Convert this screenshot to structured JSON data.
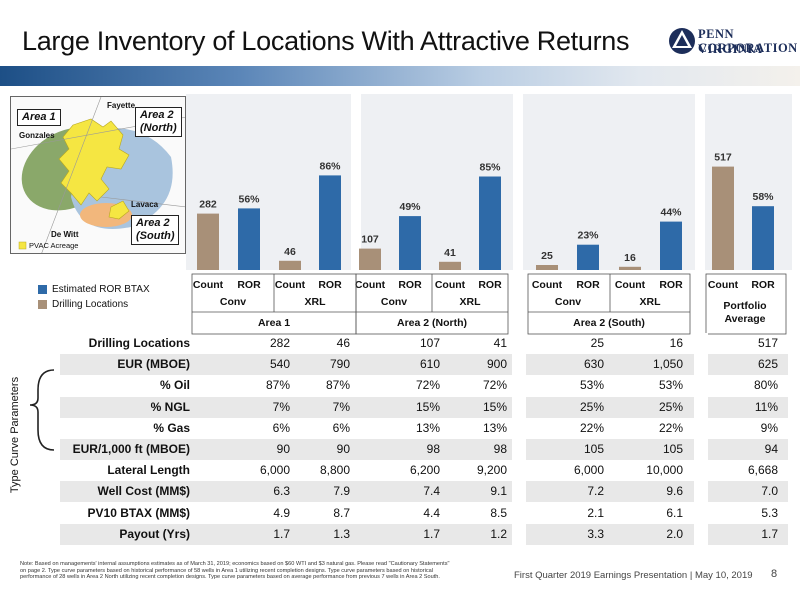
{
  "title": "Large Inventory of Locations With Attractive Returns",
  "logo": {
    "line1": "PENN VIRGINIA",
    "line2": "CORPORATION"
  },
  "map": {
    "labels": {
      "fayette": "Fayette",
      "gonzales": "Gonzales",
      "lavaca": "Lavaca",
      "dewitt": "De Witt",
      "acreage": "PVAC Acreage"
    },
    "callouts": {
      "area1": "Area 1",
      "area2n_l1": "Area 2",
      "area2n_l2": "(North)",
      "area2s_l1": "Area 2",
      "area2s_l2": "(South)"
    },
    "colors": {
      "area1": "#8aa86a",
      "area2n": "#a9c4de",
      "area2s": "#f2b77c",
      "acreage": "#f5e642"
    }
  },
  "legend": {
    "ror": "Estimated ROR BTAX",
    "count": "Drilling Locations"
  },
  "colors": {
    "ror": "#2e6aa8",
    "count": "#a89078"
  },
  "chart_data": {
    "type": "bar",
    "groups": [
      {
        "area": "Area 1",
        "sub": "Conv",
        "count": 282,
        "ror": 56
      },
      {
        "area": "Area 1",
        "sub": "XRL",
        "count": 46,
        "ror": 86
      },
      {
        "area": "Area 2 (North)",
        "sub": "Conv",
        "count": 107,
        "ror": 49
      },
      {
        "area": "Area 2 (North)",
        "sub": "XRL",
        "count": 41,
        "ror": 85
      },
      {
        "area": "Area 2 (South)",
        "sub": "Conv",
        "count": 25,
        "ror": 23
      },
      {
        "area": "Area 2 (South)",
        "sub": "XRL",
        "count": 16,
        "ror": 44
      },
      {
        "area": "Portfolio Average",
        "sub": "",
        "count": 517,
        "ror": 58
      }
    ],
    "count_label": "Count",
    "ror_label": "ROR"
  },
  "headers": {
    "conv": "Conv",
    "xrl": "XRL",
    "area1": "Area 1",
    "area2n": "Area 2 (North)",
    "area2s": "Area 2 (South)",
    "portfolio_l1": "Portfolio",
    "portfolio_l2": "Average"
  },
  "table": {
    "side_label": "Type Curve Parameters",
    "rows": [
      {
        "label": "Drilling Locations",
        "values": [
          "282",
          "46",
          "107",
          "41",
          "25",
          "16",
          "517"
        ]
      },
      {
        "label": "EUR (MBOE)",
        "values": [
          "540",
          "790",
          "610",
          "900",
          "630",
          "1,050",
          "625"
        ]
      },
      {
        "label": "% Oil",
        "values": [
          "87%",
          "87%",
          "72%",
          "72%",
          "53%",
          "53%",
          "80%"
        ]
      },
      {
        "label": "% NGL",
        "values": [
          "7%",
          "7%",
          "15%",
          "15%",
          "25%",
          "25%",
          "11%"
        ]
      },
      {
        "label": "% Gas",
        "values": [
          "6%",
          "6%",
          "13%",
          "13%",
          "22%",
          "22%",
          "9%"
        ]
      },
      {
        "label": "EUR/1,000 ft (MBOE)",
        "values": [
          "90",
          "90",
          "98",
          "98",
          "105",
          "105",
          "94"
        ]
      },
      {
        "label": "Lateral Length",
        "values": [
          "6,000",
          "8,800",
          "6,200",
          "9,200",
          "6,000",
          "10,000",
          "6,668"
        ]
      },
      {
        "label": "Well Cost (MM$)",
        "values": [
          "6.3",
          "7.9",
          "7.4",
          "9.1",
          "7.2",
          "9.6",
          "7.0"
        ]
      },
      {
        "label": "PV10 BTAX (MM$)",
        "values": [
          "4.9",
          "8.7",
          "4.4",
          "8.5",
          "2.1",
          "6.1",
          "5.3"
        ]
      },
      {
        "label": "Payout (Yrs)",
        "values": [
          "1.7",
          "1.3",
          "1.7",
          "1.2",
          "3.3",
          "2.0",
          "1.7"
        ]
      }
    ]
  },
  "note": "Note: Based on managements' internal assumptions estimates as of March 31, 2019; economics based on $60 WTI and $3 natural gas. Please read \"Cautionary Statements\" on page 2. Type curve parameters based on historical performance of 58 wells in Area 1 utilizing recent completion designs. Type curve parameters based on historical performance of 28 wells in Area 2 North utilizing recent completion designs. Type curve parameters based on average performance from previous 7 wells in Area 2 South.",
  "footer": "First Quarter 2019 Earnings Presentation | May 10, 2019",
  "page_number": "8"
}
